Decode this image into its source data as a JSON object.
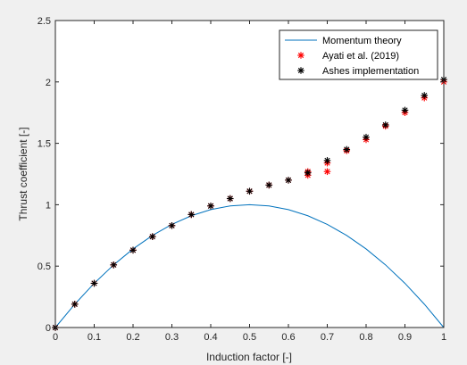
{
  "chart_data": {
    "type": "line",
    "xlabel": "Induction factor [-]",
    "ylabel": "Thrust coefficient [-]",
    "xlim": [
      0,
      1
    ],
    "ylim": [
      0,
      2.5
    ],
    "xticks": [
      "0",
      "0.1",
      "0.2",
      "0.3",
      "0.4",
      "0.5",
      "0.6",
      "0.7",
      "0.8",
      "0.9",
      "1"
    ],
    "yticks": [
      "0",
      "0.5",
      "1",
      "1.5",
      "2",
      "2.5"
    ],
    "xtick_values": [
      0,
      0.1,
      0.2,
      0.3,
      0.4,
      0.5,
      0.6,
      0.7,
      0.8,
      0.9,
      1.0
    ],
    "ytick_values": [
      0,
      0.5,
      1.0,
      1.5,
      2.0,
      2.5
    ],
    "grid": false,
    "legend_position": "top-right",
    "series": [
      {
        "name": "Momentum theory",
        "kind": "line",
        "color": "#0072BD",
        "x": [
          0,
          0.05,
          0.1,
          0.15,
          0.2,
          0.25,
          0.3,
          0.35,
          0.4,
          0.45,
          0.5,
          0.55,
          0.6,
          0.65,
          0.7,
          0.75,
          0.8,
          0.85,
          0.9,
          0.95,
          1.0
        ],
        "y": [
          0,
          0.19,
          0.36,
          0.51,
          0.64,
          0.75,
          0.84,
          0.91,
          0.96,
          0.99,
          1.0,
          0.99,
          0.96,
          0.91,
          0.84,
          0.75,
          0.64,
          0.51,
          0.36,
          0.19,
          0
        ]
      },
      {
        "name": "Ayati et al. (2019)",
        "kind": "marker",
        "marker": "*",
        "color": "#FF0000",
        "x": [
          0,
          0.05,
          0.1,
          0.15,
          0.2,
          0.25,
          0.3,
          0.35,
          0.4,
          0.45,
          0.5,
          0.55,
          0.6,
          0.65,
          0.65,
          0.7,
          0.7,
          0.75,
          0.8,
          0.85,
          0.9,
          0.95,
          1.0
        ],
        "y": [
          0,
          0.19,
          0.36,
          0.51,
          0.63,
          0.74,
          0.83,
          0.92,
          0.99,
          1.05,
          1.11,
          1.16,
          1.2,
          1.24,
          1.27,
          1.27,
          1.34,
          1.44,
          1.53,
          1.64,
          1.75,
          1.87,
          2.0
        ]
      },
      {
        "name": "Ashes implementation",
        "kind": "marker",
        "marker": "*",
        "color": "#000000",
        "x": [
          0,
          0.05,
          0.1,
          0.15,
          0.2,
          0.25,
          0.3,
          0.35,
          0.4,
          0.45,
          0.5,
          0.55,
          0.6,
          0.65,
          0.7,
          0.75,
          0.8,
          0.85,
          0.9,
          0.95,
          1.0
        ],
        "y": [
          0,
          0.19,
          0.36,
          0.51,
          0.63,
          0.74,
          0.83,
          0.92,
          0.99,
          1.05,
          1.11,
          1.16,
          1.2,
          1.26,
          1.36,
          1.45,
          1.55,
          1.65,
          1.77,
          1.89,
          2.02
        ]
      }
    ]
  }
}
